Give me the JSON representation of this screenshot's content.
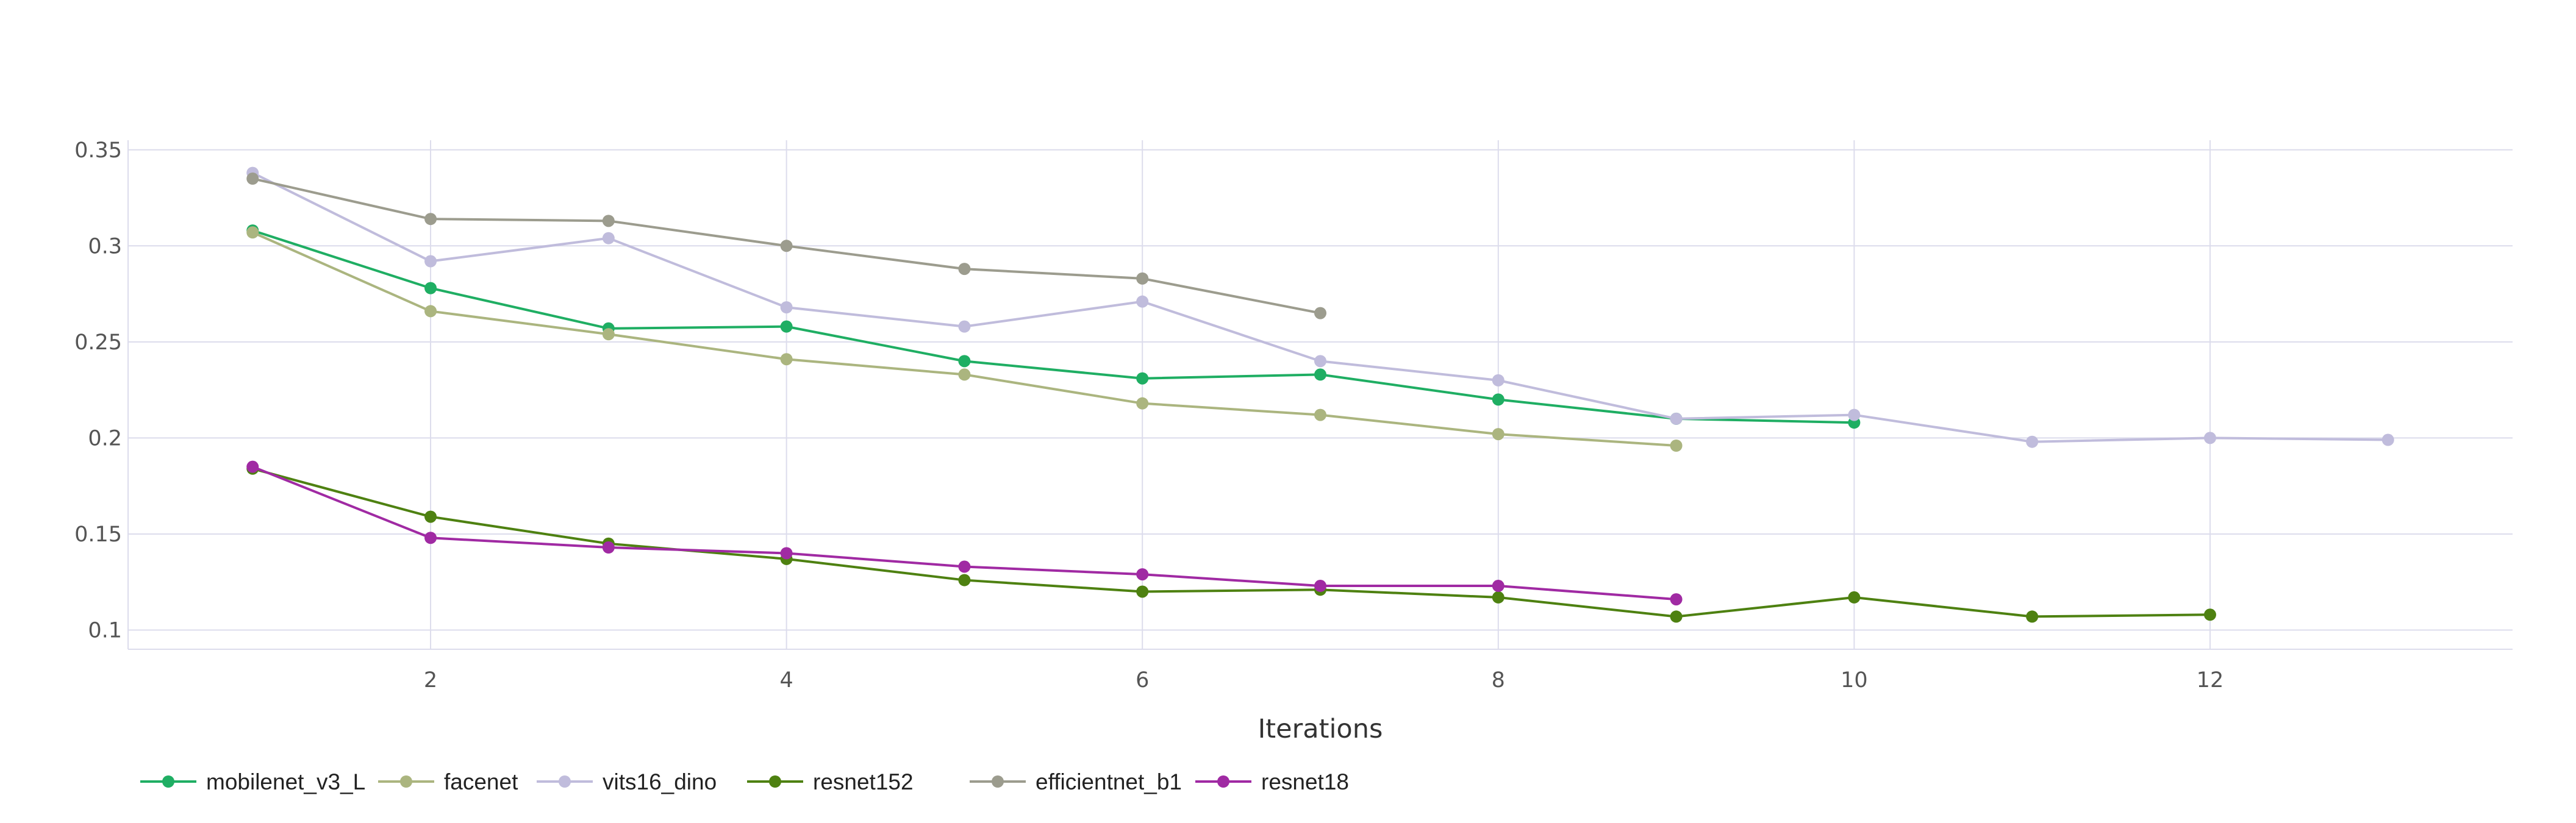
{
  "chart_data": {
    "type": "line",
    "title": "",
    "xlabel": "Iterations",
    "ylabel": "",
    "xlim": [
      0.3,
      13.7
    ],
    "ylim": [
      0.09,
      0.355
    ],
    "x_ticks": [
      2,
      4,
      6,
      8,
      10,
      12
    ],
    "y_ticks": [
      0.1,
      0.15,
      0.2,
      0.25,
      0.3,
      0.35
    ],
    "y_tick_labels": [
      "0.1",
      "0.15",
      "0.2",
      "0.25",
      "0.3",
      "0.35"
    ],
    "grid": true,
    "legend_position": "bottom-left",
    "series": [
      {
        "name": "mobilenet_v3_L",
        "color": "#1fae63",
        "x": [
          1,
          2,
          3,
          4,
          5,
          6,
          7,
          8,
          9,
          10
        ],
        "y": [
          0.308,
          0.278,
          0.257,
          0.258,
          0.24,
          0.231,
          0.233,
          0.22,
          0.21,
          0.208
        ]
      },
      {
        "name": "facenet",
        "color": "#abb57f",
        "x": [
          1,
          2,
          3,
          4,
          5,
          6,
          7,
          8,
          9
        ],
        "y": [
          0.307,
          0.266,
          0.254,
          0.241,
          0.233,
          0.218,
          0.212,
          0.202,
          0.196
        ]
      },
      {
        "name": "vits16_dino",
        "color": "#c0bcdc",
        "x": [
          1,
          2,
          3,
          4,
          5,
          6,
          7,
          8,
          9,
          10,
          11,
          12,
          13
        ],
        "y": [
          0.338,
          0.292,
          0.304,
          0.268,
          0.258,
          0.271,
          0.24,
          0.23,
          0.21,
          0.212,
          0.198,
          0.2,
          0.199
        ]
      },
      {
        "name": "resnet152",
        "color": "#4e8111",
        "x": [
          1,
          2,
          3,
          4,
          5,
          6,
          7,
          8,
          9,
          10,
          11,
          12
        ],
        "y": [
          0.184,
          0.159,
          0.145,
          0.137,
          0.126,
          0.12,
          0.121,
          0.117,
          0.107,
          0.117,
          0.107,
          0.108
        ]
      },
      {
        "name": "efficientnet_b1",
        "color": "#9c9c8e",
        "x": [
          1,
          2,
          3,
          4,
          5,
          6,
          7
        ],
        "y": [
          0.335,
          0.314,
          0.313,
          0.3,
          0.288,
          0.283,
          0.265
        ]
      },
      {
        "name": "resnet18",
        "color": "#a02aa3",
        "x": [
          1,
          2,
          3,
          4,
          5,
          6,
          7,
          8,
          9
        ],
        "y": [
          0.185,
          0.148,
          0.143,
          0.14,
          0.133,
          0.129,
          0.123,
          0.123,
          0.116
        ]
      }
    ]
  }
}
